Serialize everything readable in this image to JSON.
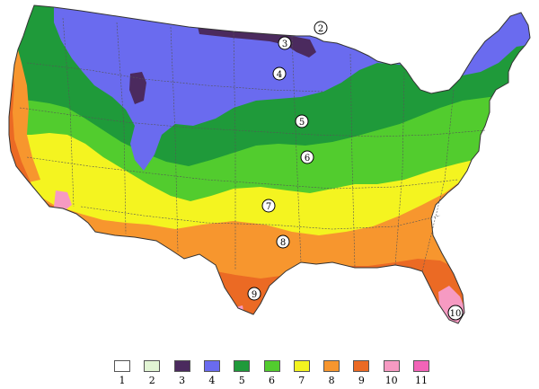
{
  "zones": [
    {
      "label": "1",
      "color": "#ffffff"
    },
    {
      "label": "2",
      "color": "#e2f5d4"
    },
    {
      "label": "3",
      "color": "#4b2a5e"
    },
    {
      "label": "4",
      "color": "#6a6bef"
    },
    {
      "label": "5",
      "color": "#1f9a3a"
    },
    {
      "label": "6",
      "color": "#52cc2e"
    },
    {
      "label": "7",
      "color": "#f4f420"
    },
    {
      "label": "8",
      "color": "#f7962e"
    },
    {
      "label": "9",
      "color": "#eb6a24"
    },
    {
      "label": "10",
      "color": "#f69ac2"
    },
    {
      "label": "11",
      "color": "#f264b8"
    }
  ],
  "map_markers": [
    "2",
    "3",
    "4",
    "5",
    "6",
    "7",
    "8",
    "9",
    "10"
  ]
}
